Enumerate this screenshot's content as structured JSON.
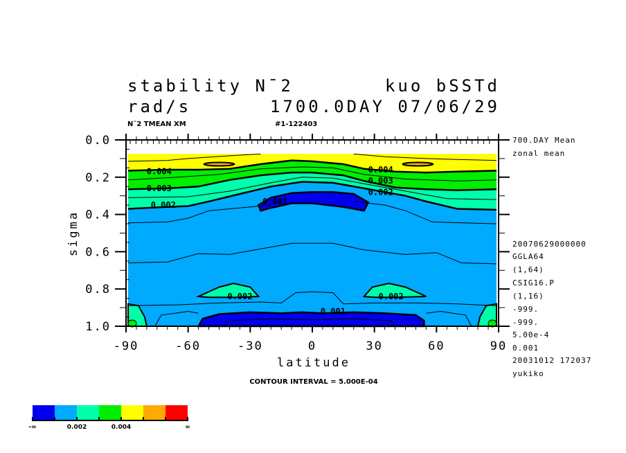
{
  "chart_data": {
    "type": "heatmap",
    "subtype": "filled-contour",
    "title": {
      "left_line1": "stability N¯2",
      "right_line1": "kuo bSSTd",
      "left_line2": "rad/s",
      "right_line2": "1700.0DAY 07/06/29"
    },
    "subtitle_left": "N¯2 TMEAN XM",
    "subtitle_right": "#1-122403",
    "xlabel": "latitude",
    "ylabel": "sigma",
    "xlim": [
      -90,
      90
    ],
    "ylim": [
      0.0,
      1.0
    ],
    "y_inverted": true,
    "x_ticks": [
      "-90",
      "-60",
      "-30",
      "0",
      "30",
      "60",
      "90"
    ],
    "x_tick_values": [
      -90,
      -60,
      -30,
      0,
      30,
      60,
      90
    ],
    "y_ticks": [
      "0.0",
      "0.2",
      "0.4",
      "0.6",
      "0.8",
      "1.0"
    ],
    "y_tick_values": [
      0.0,
      0.2,
      0.4,
      0.6,
      0.8,
      1.0
    ],
    "data_top_sigma": 0.075,
    "contour_interval": 0.0005,
    "contour_interval_text": "CONTOUR INTERVAL = 5.000E-04",
    "contour_labels": [
      {
        "text": "0.004",
        "lat": -74,
        "sigma": 0.17
      },
      {
        "text": "0.003",
        "lat": -74,
        "sigma": 0.26
      },
      {
        "text": "0.002",
        "lat": -72,
        "sigma": 0.35
      },
      {
        "text": "0.001",
        "lat": -18,
        "sigma": 0.33
      },
      {
        "text": "0.004",
        "lat": 33,
        "sigma": 0.16
      },
      {
        "text": "0.003",
        "lat": 33,
        "sigma": 0.22
      },
      {
        "text": "0.002",
        "lat": 33,
        "sigma": 0.28
      },
      {
        "text": "0.002",
        "lat": -35,
        "sigma": 0.84
      },
      {
        "text": "0.002",
        "lat": 38,
        "sigma": 0.84
      },
      {
        "text": "0.001",
        "lat": 10,
        "sigma": 0.92
      }
    ],
    "levels": [
      {
        "range": "< 0.001",
        "color": "#0000ee"
      },
      {
        "range": "0.001-0.002",
        "color": "#00aaff"
      },
      {
        "range": "0.002-0.003",
        "color": "#00ffaa"
      },
      {
        "range": "0.003-0.004",
        "color": "#00ee00"
      },
      {
        "range": "0.004-0.005",
        "color": "#ffff00"
      },
      {
        "range": "0.005-0.006",
        "color": "#ffaa00"
      },
      {
        "range": "> 0.006",
        "color": "#ff0000"
      }
    ],
    "colorbar_labels": [
      "-∞",
      "0.002",
      "0.004",
      "∞"
    ]
  },
  "side_info": [
    "700.DAY Mean",
    "zonal mean",
    "20070629000000",
    "GGLA64",
    "(1,64)",
    "CSIG16.P",
    "(1,16)",
    "-999.",
    "-999.",
    "5.00e-4",
    "0.001",
    "20031012 172037",
    "yukiko"
  ]
}
